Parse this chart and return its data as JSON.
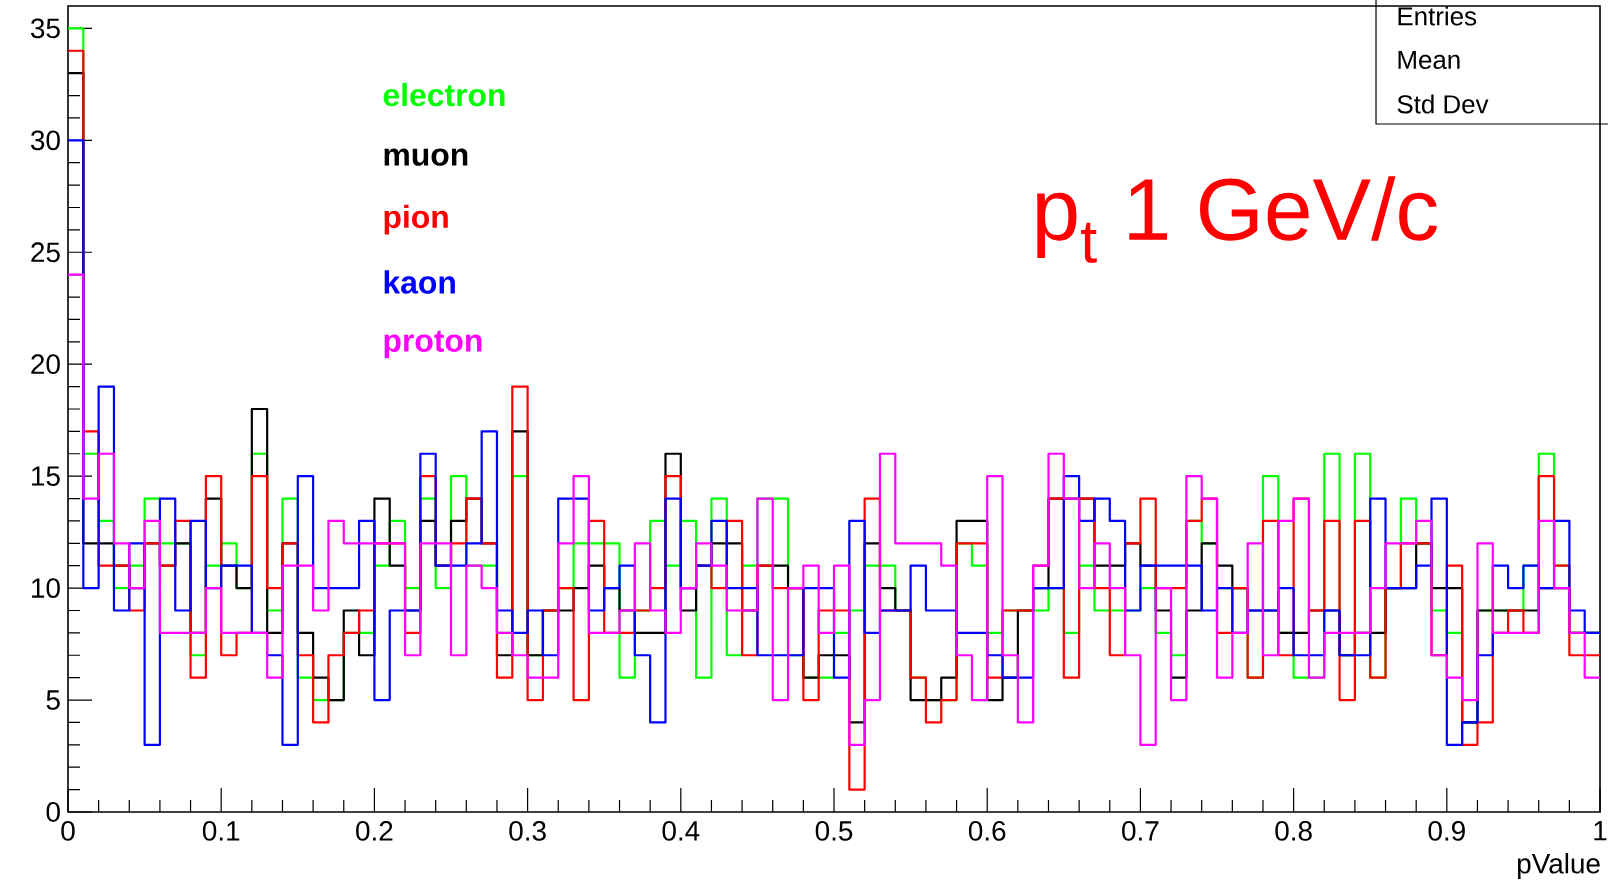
{
  "chart_data": {
    "type": "histogram",
    "xlabel": "pValue",
    "annotations": [
      "p$_{t}$ 1 GeV/c",
      "Entries",
      "Mean",
      "Std Dev"
    ],
    "bins": [
      0,
      0.01,
      0.02,
      0.03,
      0.04,
      0.05,
      0.06,
      0.07,
      0.08,
      0.09,
      0.1,
      0.11,
      0.12,
      0.13,
      0.14,
      0.15,
      0.16,
      0.17,
      0.18,
      0.19,
      0.2,
      0.21,
      0.22,
      0.23,
      0.24,
      0.25,
      0.26,
      0.27,
      0.28,
      0.29,
      0.3,
      0.31,
      0.32,
      0.33,
      0.34,
      0.35,
      0.36,
      0.37,
      0.38,
      0.39,
      0.4,
      0.41,
      0.42,
      0.43,
      0.44,
      0.45,
      0.46,
      0.47,
      0.48,
      0.49,
      0.5,
      0.51,
      0.52,
      0.53,
      0.54,
      0.55,
      0.56,
      0.57,
      0.58,
      0.59,
      0.6,
      0.61,
      0.62,
      0.63,
      0.64,
      0.65,
      0.66,
      0.67,
      0.68,
      0.69,
      0.7,
      0.71,
      0.72,
      0.73,
      0.74,
      0.75,
      0.76,
      0.77,
      0.78,
      0.79,
      0.8,
      0.81,
      0.82,
      0.83,
      0.84,
      0.85,
      0.86,
      0.87,
      0.88,
      0.89,
      0.9,
      0.91,
      0.92,
      0.93,
      0.94,
      0.95,
      0.96,
      0.97,
      0.98,
      0.99,
      1
    ],
    "series": [
      {
        "name": "electron",
        "color": "#00ff00",
        "values": [
          35,
          16,
          13,
          10,
          11,
          14,
          12,
          12,
          7,
          11,
          12,
          10,
          16,
          9,
          14,
          6,
          5,
          5,
          8,
          8,
          11,
          13,
          10,
          14,
          10,
          15,
          11,
          11,
          8,
          15,
          7,
          9,
          10,
          12,
          12,
          12,
          6,
          9,
          13,
          11,
          13,
          6,
          14,
          7,
          11,
          14,
          14,
          7,
          6,
          6,
          8,
          9,
          11,
          11,
          9,
          6,
          5,
          5,
          12,
          11,
          8,
          9,
          9,
          9,
          10,
          8,
          11,
          9,
          9,
          9,
          10,
          8,
          7,
          13,
          12,
          10,
          10,
          6,
          15,
          8,
          6,
          6,
          16,
          7,
          16,
          6,
          10,
          14,
          12,
          9,
          8,
          4,
          9,
          9,
          9,
          11,
          16,
          11,
          8,
          8
        ]
      },
      {
        "name": "muon",
        "color": "#000000",
        "values": [
          33,
          12,
          12,
          11,
          10,
          12,
          11,
          12,
          8,
          14,
          11,
          10,
          18,
          8,
          12,
          8,
          6,
          5,
          9,
          7,
          14,
          11,
          9,
          13,
          11,
          13,
          14,
          12,
          7,
          17,
          7,
          9,
          9,
          10,
          11,
          10,
          9,
          8,
          8,
          16,
          9,
          11,
          12,
          12,
          9,
          11,
          11,
          10,
          6,
          7,
          7,
          4,
          12,
          10,
          9,
          5,
          5,
          6,
          13,
          13,
          5,
          6,
          9,
          10,
          14,
          14,
          14,
          11,
          11,
          12,
          11,
          9,
          6,
          9,
          12,
          11,
          10,
          9,
          9,
          8,
          8,
          9,
          9,
          7,
          8,
          8,
          10,
          10,
          12,
          10,
          10,
          4,
          9,
          9,
          9,
          9,
          10,
          10,
          8,
          8
        ]
      },
      {
        "name": "pion",
        "color": "#ff0000",
        "values": [
          34,
          17,
          11,
          11,
          9,
          12,
          11,
          13,
          6,
          15,
          7,
          8,
          15,
          10,
          12,
          7,
          4,
          7,
          8,
          9,
          12,
          12,
          8,
          15,
          11,
          12,
          14,
          12,
          6,
          19,
          5,
          9,
          10,
          5,
          13,
          8,
          8,
          9,
          10,
          15,
          10,
          11,
          10,
          13,
          7,
          11,
          10,
          10,
          5,
          9,
          9,
          1,
          14,
          9,
          9,
          6,
          4,
          5,
          12,
          12,
          6,
          9,
          9,
          11,
          14,
          6,
          14,
          10,
          7,
          12,
          14,
          10,
          10,
          13,
          14,
          8,
          10,
          6,
          13,
          7,
          14,
          9,
          13,
          5,
          13,
          6,
          10,
          12,
          12,
          7,
          11,
          3,
          4,
          8,
          9,
          8,
          15,
          11,
          7,
          7
        ]
      },
      {
        "name": "kaon",
        "color": "#0000ff",
        "values": [
          30,
          10,
          19,
          9,
          12,
          3,
          14,
          9,
          13,
          10,
          11,
          11,
          8,
          7,
          3,
          15,
          10,
          10,
          10,
          13,
          5,
          9,
          9,
          16,
          11,
          11,
          12,
          17,
          9,
          8,
          9,
          7,
          14,
          14,
          9,
          10,
          11,
          7,
          4,
          14,
          10,
          11,
          13,
          10,
          10,
          7,
          7,
          7,
          10,
          10,
          6,
          13,
          8,
          9,
          9,
          11,
          9,
          9,
          8,
          8,
          7,
          6,
          6,
          10,
          10,
          15,
          13,
          14,
          13,
          9,
          11,
          11,
          11,
          11,
          9,
          10,
          8,
          9,
          9,
          10,
          7,
          7,
          9,
          7,
          7,
          14,
          10,
          10,
          11,
          14,
          3,
          4,
          7,
          11,
          10,
          11,
          10,
          13,
          9,
          8
        ]
      },
      {
        "name": "proton",
        "color": "#ff00ff",
        "values": [
          24,
          14,
          16,
          12,
          10,
          13,
          8,
          8,
          8,
          10,
          8,
          8,
          8,
          6,
          11,
          11,
          9,
          13,
          12,
          12,
          12,
          12,
          7,
          12,
          12,
          7,
          11,
          10,
          8,
          7,
          6,
          6,
          12,
          15,
          8,
          8,
          9,
          12,
          9,
          8,
          10,
          12,
          11,
          9,
          9,
          14,
          5,
          10,
          11,
          8,
          11,
          3,
          5,
          16,
          12,
          12,
          12,
          11,
          7,
          5,
          15,
          7,
          4,
          11,
          16,
          14,
          10,
          12,
          10,
          7,
          3,
          10,
          5,
          15,
          14,
          6,
          8,
          12,
          7,
          13,
          14,
          6,
          8,
          8,
          8,
          10,
          12,
          12,
          13,
          7,
          6,
          5,
          12,
          8,
          8,
          8,
          13,
          10,
          8,
          6
        ]
      }
    ],
    "xlim": [
      0,
      1
    ],
    "ylim": [
      0,
      36
    ],
    "xticks": [
      0,
      0.1,
      0.2,
      0.3,
      0.4,
      0.5,
      0.6,
      0.7,
      0.8,
      0.9,
      1
    ],
    "yticks": [
      0,
      5,
      10,
      15,
      20,
      25,
      30,
      35
    ],
    "legend": "top left"
  }
}
